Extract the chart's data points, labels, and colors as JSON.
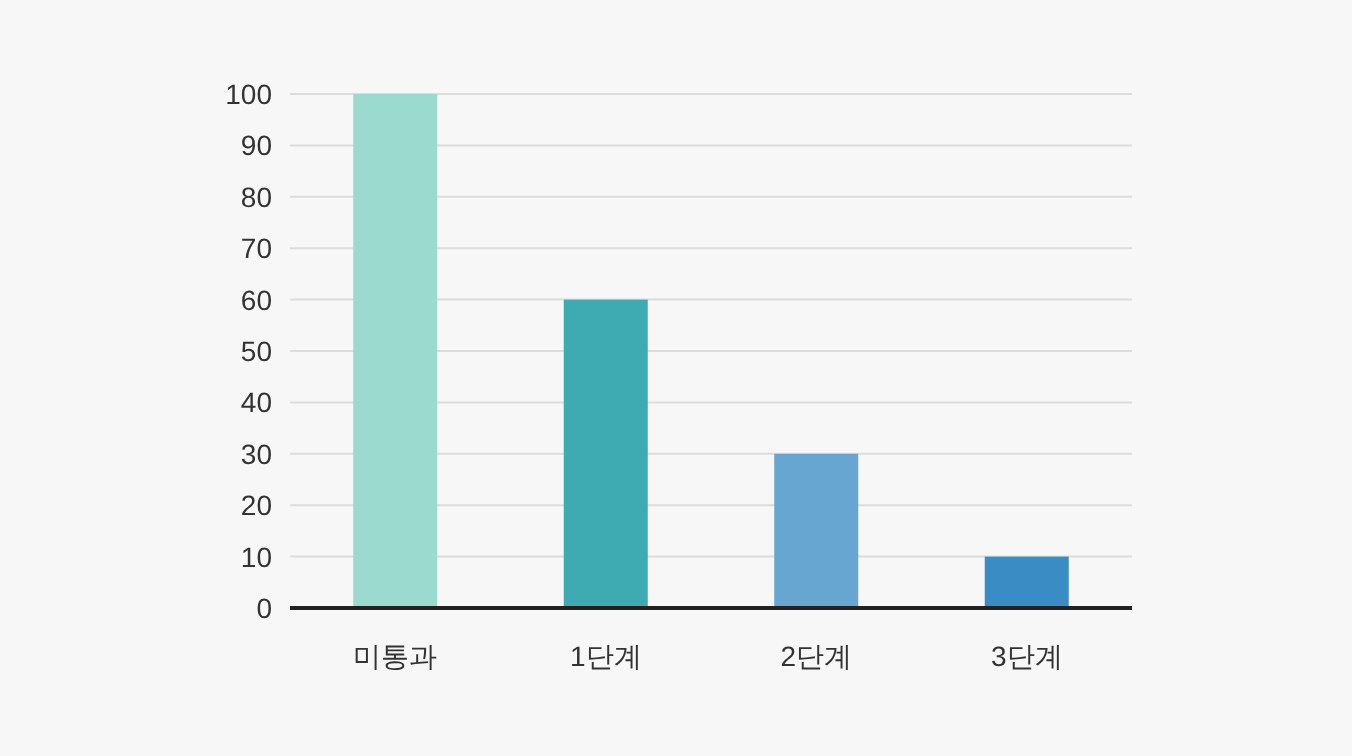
{
  "chart_data": {
    "type": "bar",
    "categories": [
      "미통과",
      "1단계",
      "2단계",
      "3단계"
    ],
    "values": [
      100,
      60,
      30,
      10
    ],
    "colors": [
      "#9bdbcf",
      "#3eabb2",
      "#66a6d1",
      "#3a8cc5"
    ],
    "ylim": [
      0,
      100
    ],
    "yticks": [
      0,
      10,
      20,
      30,
      40,
      50,
      60,
      70,
      80,
      90,
      100
    ],
    "grid": "y"
  }
}
